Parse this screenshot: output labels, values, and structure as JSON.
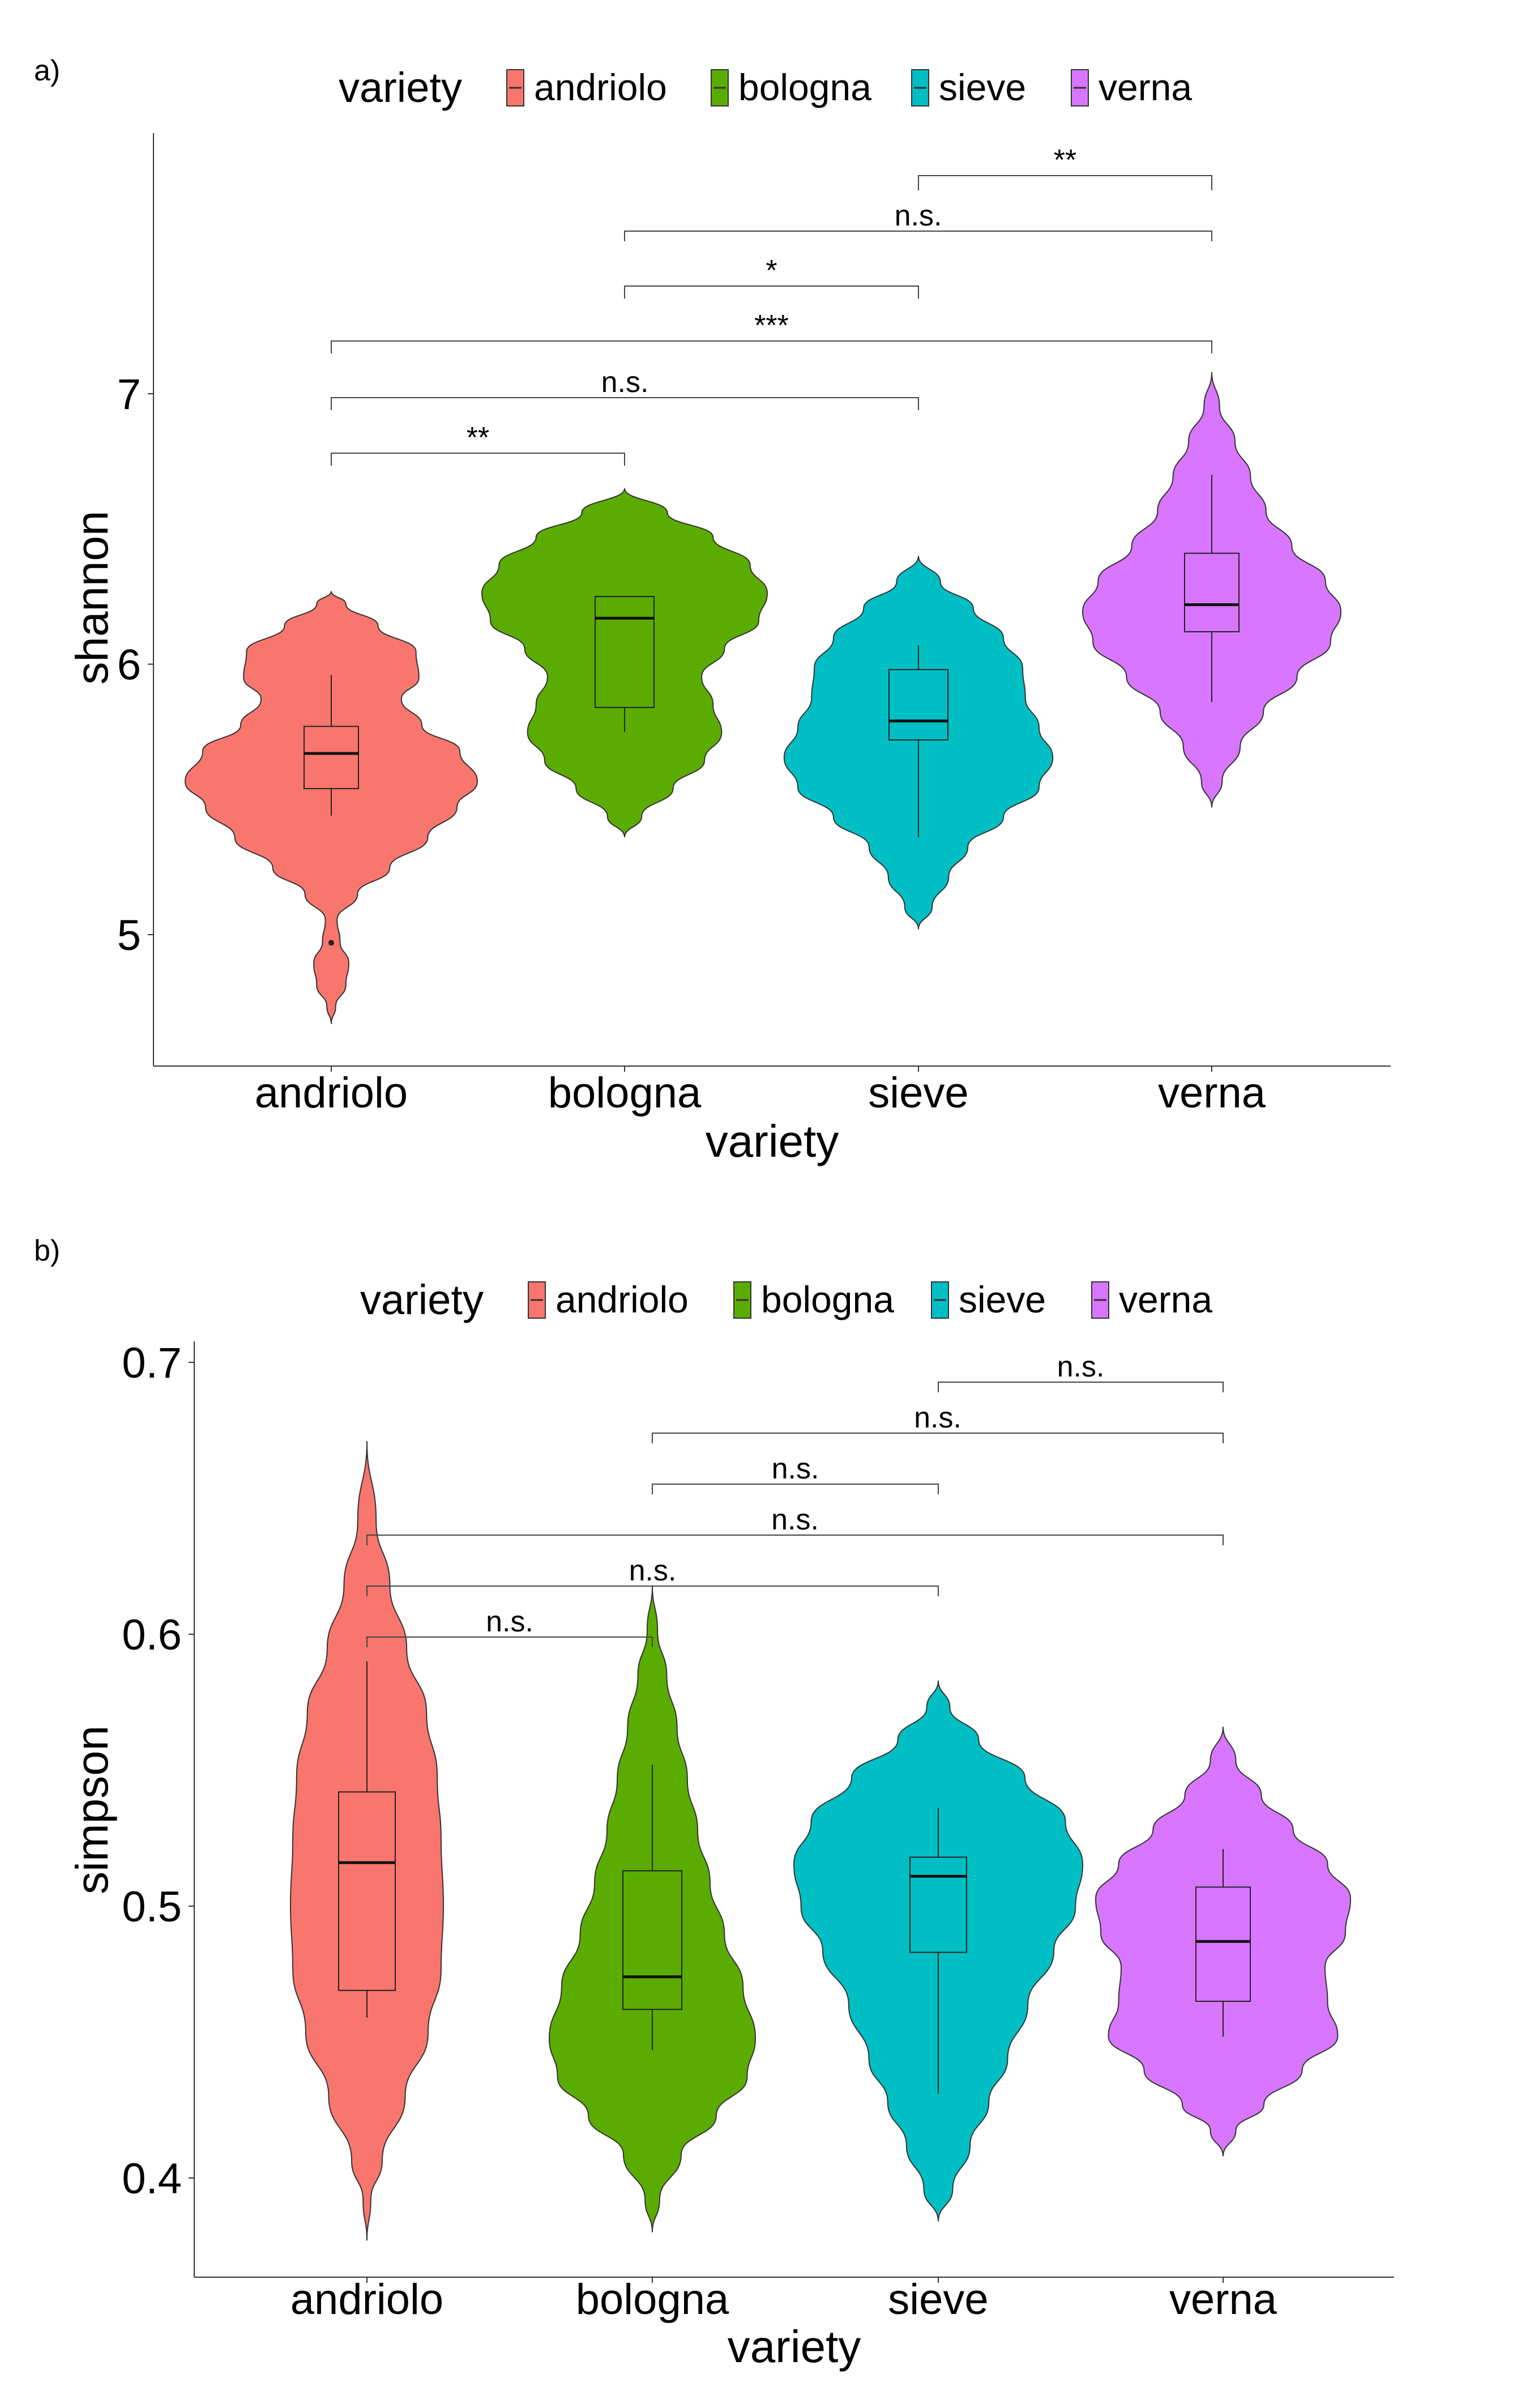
{
  "chart_data": [
    {
      "type": "violin",
      "panel_label": "a)",
      "title": "",
      "xlabel": "variety",
      "ylabel": "shannon",
      "ylim": [
        4.5,
        8.0
      ],
      "yticks": [
        "5",
        "6",
        "7"
      ],
      "grid": false,
      "legend": {
        "title": "variety",
        "position": "top"
      },
      "categories": [
        "andriolo",
        "bologna",
        "sieve",
        "verna"
      ],
      "colors": [
        "#F8766D",
        "#5BAC00",
        "#00BFC4",
        "#D876FF"
      ],
      "violin_range": [
        [
          4.67,
          6.27
        ],
        [
          5.36,
          6.65
        ],
        [
          5.02,
          6.4
        ],
        [
          5.47,
          7.08
        ]
      ],
      "box": [
        {
          "whisker_low": 5.44,
          "q1": 5.54,
          "median": 5.67,
          "q3": 5.77,
          "whisker_high": 5.96
        },
        {
          "whisker_low": 5.75,
          "q1": 5.84,
          "median": 6.17,
          "q3": 6.25,
          "whisker_high": 6.25
        },
        {
          "whisker_low": 5.36,
          "q1": 5.72,
          "median": 5.79,
          "q3": 5.98,
          "whisker_high": 6.07
        },
        {
          "whisker_low": 5.86,
          "q1": 6.12,
          "median": 6.22,
          "q3": 6.41,
          "whisker_high": 6.7
        }
      ],
      "outliers": [
        {
          "category": "andriolo",
          "value": 4.97
        }
      ],
      "comparisons": [
        {
          "pair": [
            "sieve",
            "verna"
          ],
          "label": "**"
        },
        {
          "pair": [
            "bologna",
            "verna"
          ],
          "label": "n.s."
        },
        {
          "pair": [
            "bologna",
            "sieve"
          ],
          "label": "*"
        },
        {
          "pair": [
            "andriolo",
            "verna"
          ],
          "label": "***"
        },
        {
          "pair": [
            "andriolo",
            "sieve"
          ],
          "label": "n.s."
        },
        {
          "pair": [
            "andriolo",
            "bologna"
          ],
          "label": "**"
        }
      ]
    },
    {
      "type": "violin",
      "panel_label": "b)",
      "title": "",
      "xlabel": "variety",
      "ylabel": "simpson",
      "ylim": [
        0.362,
        0.707
      ],
      "yticks": [
        "0.4",
        "0.5",
        "0.6",
        "0.7"
      ],
      "grid": false,
      "legend": {
        "title": "variety",
        "position": "top"
      },
      "categories": [
        "andriolo",
        "bologna",
        "sieve",
        "verna"
      ],
      "colors": [
        "#F8766D",
        "#5BAC00",
        "#00BFC4",
        "#D876FF"
      ],
      "violin_range": [
        [
          0.377,
          0.671
        ],
        [
          0.38,
          0.618
        ],
        [
          0.384,
          0.583
        ],
        [
          0.408,
          0.566
        ]
      ],
      "box": [
        {
          "whisker_low": 0.459,
          "q1": 0.469,
          "median": 0.516,
          "q3": 0.542,
          "whisker_high": 0.59
        },
        {
          "whisker_low": 0.447,
          "q1": 0.462,
          "median": 0.474,
          "q3": 0.513,
          "whisker_high": 0.552
        },
        {
          "whisker_low": 0.431,
          "q1": 0.483,
          "median": 0.511,
          "q3": 0.518,
          "whisker_high": 0.536
        },
        {
          "whisker_low": 0.452,
          "q1": 0.465,
          "median": 0.487,
          "q3": 0.507,
          "whisker_high": 0.521
        }
      ],
      "outliers": [],
      "comparisons": [
        {
          "pair": [
            "sieve",
            "verna"
          ],
          "label": "n.s."
        },
        {
          "pair": [
            "bologna",
            "verna"
          ],
          "label": "n.s."
        },
        {
          "pair": [
            "bologna",
            "sieve"
          ],
          "label": "n.s."
        },
        {
          "pair": [
            "andriolo",
            "verna"
          ],
          "label": "n.s."
        },
        {
          "pair": [
            "andriolo",
            "sieve"
          ],
          "label": "n.s."
        },
        {
          "pair": [
            "andriolo",
            "bologna"
          ],
          "label": "n.s."
        }
      ]
    }
  ]
}
